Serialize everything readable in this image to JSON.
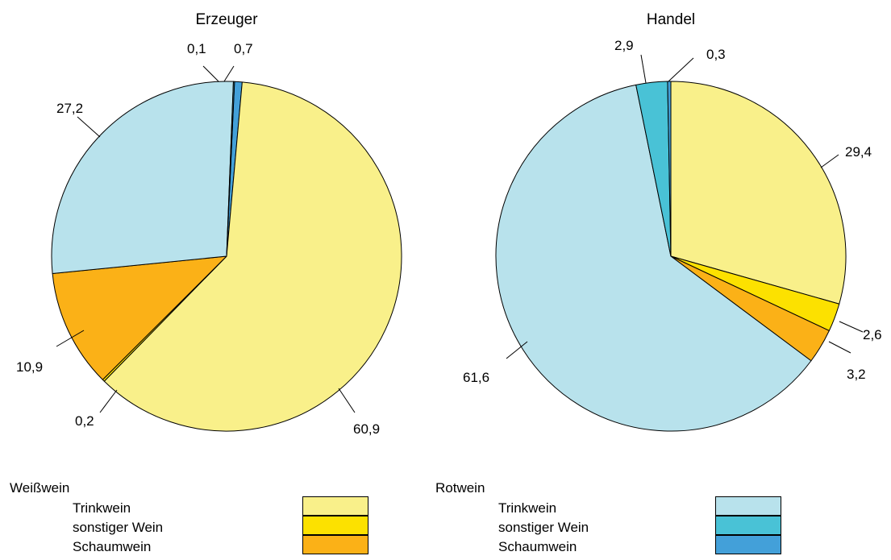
{
  "chart_data": [
    {
      "type": "pie",
      "title": "Erzeuger",
      "slices": [
        {
          "label": "0,7",
          "value": 0.7,
          "series": "Rotwein Schaumwein",
          "color": "#43A0D9"
        },
        {
          "label": "60,9",
          "value": 60.9,
          "series": "Weißwein Trinkwein",
          "color": "#F9F08A"
        },
        {
          "label": "0,2",
          "value": 0.2,
          "series": "Weißwein sonstiger Wein",
          "color": "#FCE100"
        },
        {
          "label": "10,9",
          "value": 10.9,
          "series": "Weißwein Schaumwein",
          "color": "#FBB117"
        },
        {
          "label": "27,2",
          "value": 27.2,
          "series": "Rotwein Trinkwein",
          "color": "#B8E2EC"
        },
        {
          "label": "0,1",
          "value": 0.1,
          "series": "Rotwein sonstiger Wein",
          "color": "#49C2D6"
        }
      ]
    },
    {
      "type": "pie",
      "title": "Handel",
      "slices": [
        {
          "label": "29,4",
          "value": 29.4,
          "series": "Weißwein Trinkwein",
          "color": "#F9F08A"
        },
        {
          "label": "2,6",
          "value": 2.6,
          "series": "Weißwein sonstiger Wein",
          "color": "#FCE100"
        },
        {
          "label": "3,2",
          "value": 3.2,
          "series": "Weißwein Schaumwein",
          "color": "#FBB117"
        },
        {
          "label": "61,6",
          "value": 61.6,
          "series": "Rotwein Trinkwein",
          "color": "#B8E2EC"
        },
        {
          "label": "2,9",
          "value": 2.9,
          "series": "Rotwein sonstiger Wein",
          "color": "#49C2D6"
        },
        {
          "label": "0,3",
          "value": 0.3,
          "series": "Rotwein Schaumwein",
          "color": "#43A0D9"
        }
      ]
    }
  ],
  "legend": {
    "groups": [
      {
        "heading": "Weißwein",
        "items": [
          {
            "label": "Trinkwein",
            "color": "#F9F08A"
          },
          {
            "label": "sonstiger Wein",
            "color": "#FCE100"
          },
          {
            "label": "Schaumwein",
            "color": "#FBB117"
          }
        ]
      },
      {
        "heading": "Rotwein",
        "items": [
          {
            "label": "Trinkwein",
            "color": "#B8E2EC"
          },
          {
            "label": "sonstiger Wein",
            "color": "#49C2D6"
          },
          {
            "label": "Schaumwein",
            "color": "#43A0D9"
          }
        ]
      }
    ]
  }
}
